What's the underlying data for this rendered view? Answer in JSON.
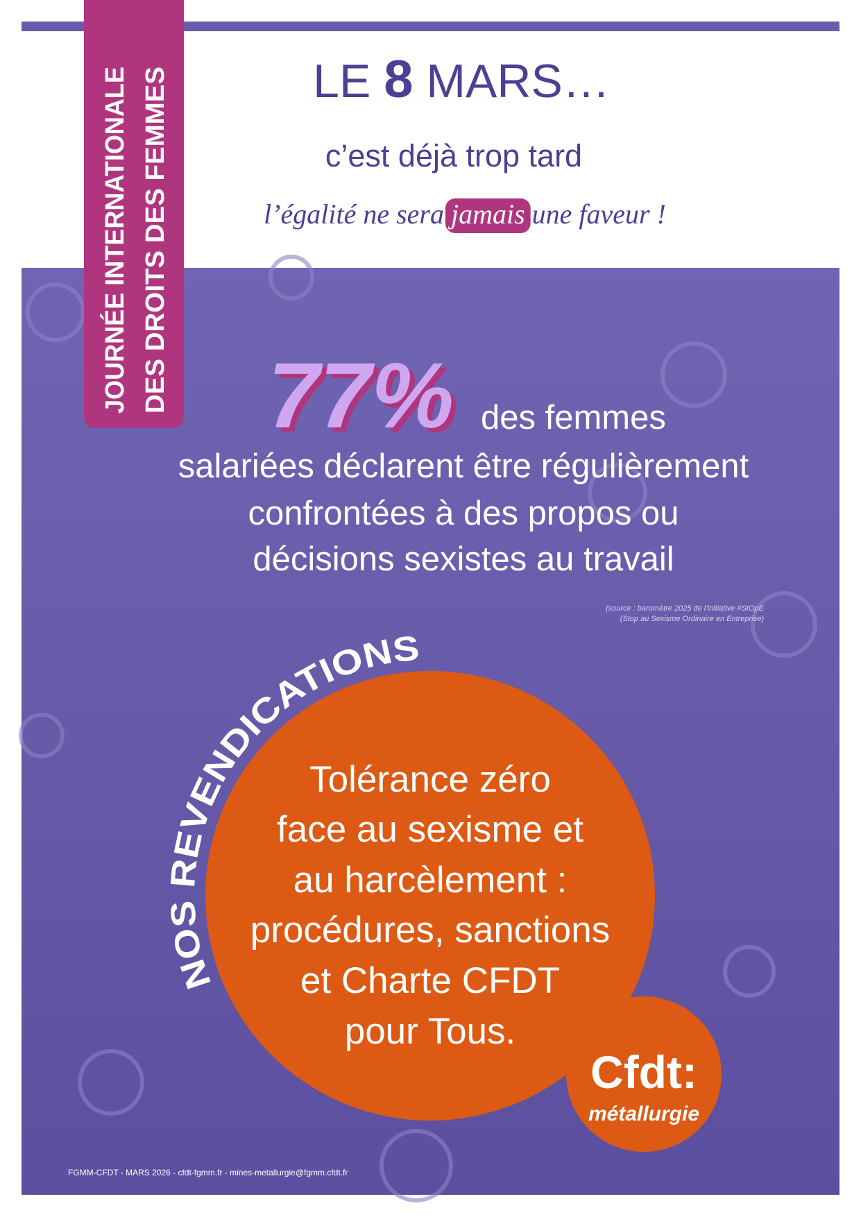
{
  "banner": {
    "lines": [
      "JOURNÉE INTERNATIONALE",
      "DES DROITS DES FEMMES"
    ]
  },
  "header": {
    "title": [
      "LE",
      "8",
      "MARS…"
    ],
    "subtitle": "c’est déjà trop tard",
    "tagline": [
      "l’égalité ne sera",
      "jamais",
      "une faveur !"
    ]
  },
  "stat": {
    "figure": "77%",
    "lead": "des femmes",
    "lines": [
      "salariées déclarent être régulièrement",
      "confrontées à des propos ou",
      "décisions sexistes au travail"
    ],
    "source": [
      "(source : baromètre 2025 de l’initiative #StOpE",
      "(Stop au Sexisme Ordinaire en Entreprise)"
    ]
  },
  "demands": {
    "heading": "NOS REVENDICATIONS",
    "lines": [
      "Tolérance zéro",
      "face au sexisme et",
      "au harcèlement :",
      "procédures, sanctions",
      "et Charte CFDT",
      "pour Tous."
    ]
  },
  "logo": {
    "name": "Cfdt:",
    "sub": "métallurgie"
  },
  "footer": "FGMM-CFDT - MARS 2026 - cfdt-fgmm.fr - mines-metallurgie@fgmm.cfdt.fr"
}
